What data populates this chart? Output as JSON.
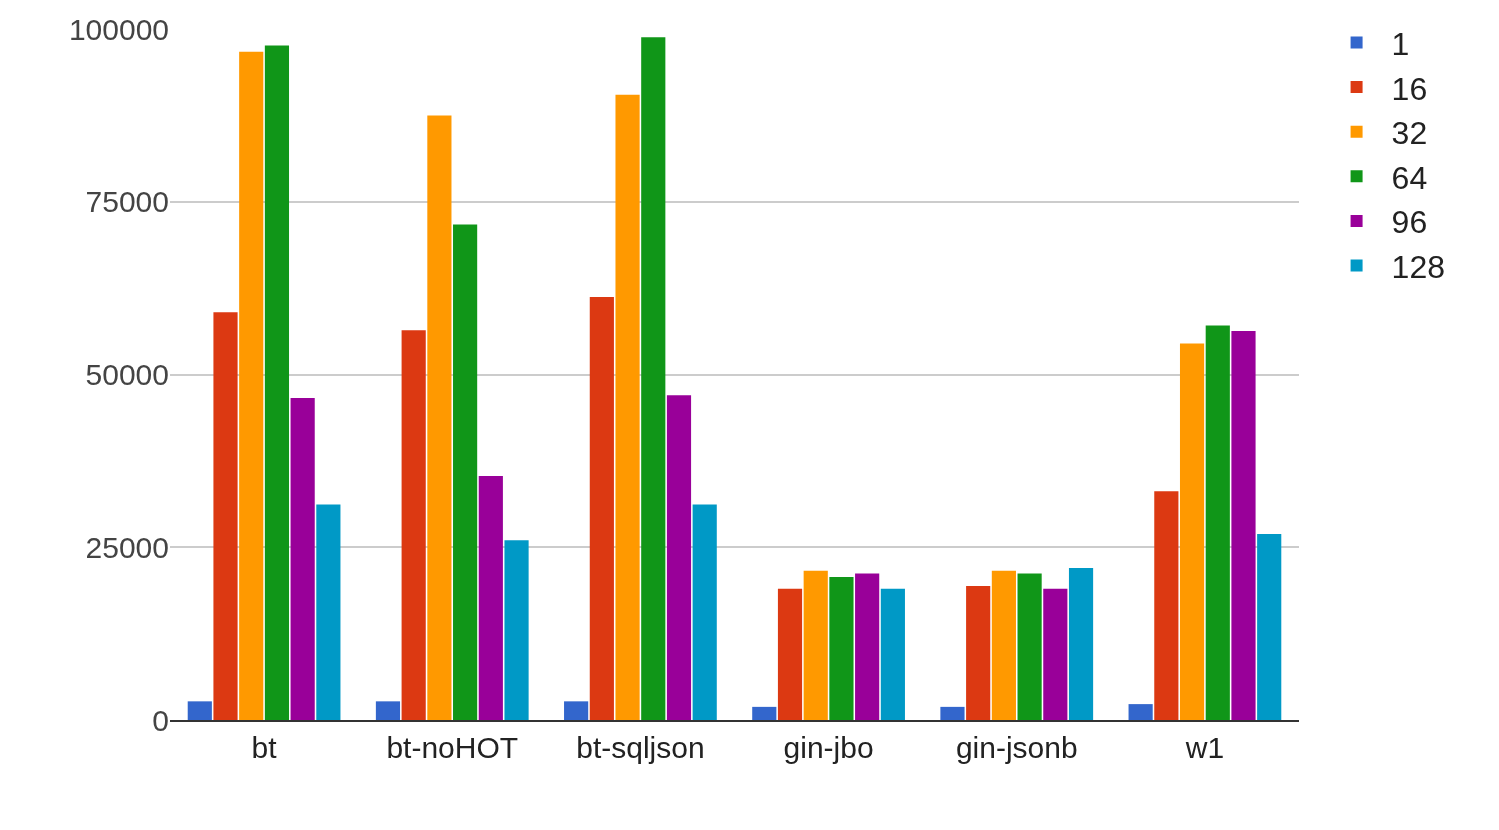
{
  "chart_data": {
    "type": "bar",
    "categories": [
      "bt",
      "bt-noHOT",
      "bt-sqljson",
      "gin-jbo",
      "gin-jsonb",
      "w1"
    ],
    "series": [
      {
        "name": "1",
        "color": "#3366cc",
        "values": [
          2700,
          2700,
          2700,
          1900,
          1900,
          2300
        ]
      },
      {
        "name": "16",
        "color": "#dc3912",
        "values": [
          59000,
          56400,
          61200,
          19000,
          19400,
          33100
        ]
      },
      {
        "name": "32",
        "color": "#ff9900",
        "values": [
          96700,
          87500,
          90500,
          21600,
          21600,
          54500
        ]
      },
      {
        "name": "64",
        "color": "#109618",
        "values": [
          97600,
          71700,
          98800,
          20700,
          21200,
          57100
        ]
      },
      {
        "name": "96",
        "color": "#990099",
        "values": [
          46600,
          35300,
          47000,
          21200,
          19000,
          56300
        ]
      },
      {
        "name": "128",
        "color": "#0099c6",
        "values": [
          31200,
          26000,
          31200,
          19000,
          22000,
          26900
        ]
      }
    ],
    "ylim": [
      0,
      100000
    ],
    "yticks": [
      0,
      25000,
      50000,
      75000,
      100000
    ],
    "grid": "y",
    "legend": "top right"
  }
}
